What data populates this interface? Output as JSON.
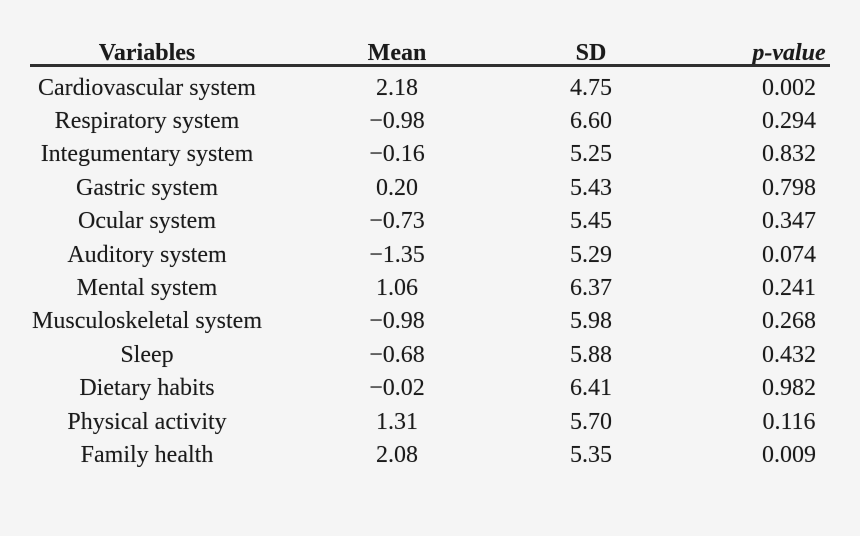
{
  "table": {
    "columns": [
      {
        "label": "Variables"
      },
      {
        "label": "Mean"
      },
      {
        "label": "SD"
      },
      {
        "label": "p-value"
      }
    ],
    "rows": [
      {
        "variable": "Cardiovascular system",
        "mean": "2.18",
        "sd": "4.75",
        "p_value": "0.002"
      },
      {
        "variable": "Respiratory system",
        "mean": "−0.98",
        "sd": "6.60",
        "p_value": "0.294"
      },
      {
        "variable": "Integumentary system",
        "mean": "−0.16",
        "sd": "5.25",
        "p_value": "0.832"
      },
      {
        "variable": "Gastric system",
        "mean": "0.20",
        "sd": "5.43",
        "p_value": "0.798"
      },
      {
        "variable": "Ocular system",
        "mean": "−0.73",
        "sd": "5.45",
        "p_value": "0.347"
      },
      {
        "variable": "Auditory system",
        "mean": "−1.35",
        "sd": "5.29",
        "p_value": "0.074"
      },
      {
        "variable": "Mental system",
        "mean": "1.06",
        "sd": "6.37",
        "p_value": "0.241"
      },
      {
        "variable": "Musculoskeletal system",
        "mean": "−0.98",
        "sd": "5.98",
        "p_value": "0.268"
      },
      {
        "variable": "Sleep",
        "mean": "−0.68",
        "sd": "5.88",
        "p_value": "0.432"
      },
      {
        "variable": "Dietary habits",
        "mean": "−0.02",
        "sd": "6.41",
        "p_value": "0.982"
      },
      {
        "variable": "Physical activity",
        "mean": "1.31",
        "sd": "5.70",
        "p_value": "0.116"
      },
      {
        "variable": "Family health",
        "mean": "2.08",
        "sd": "5.35",
        "p_value": "0.009"
      }
    ]
  },
  "colors": {
    "background": "#f5f5f5",
    "text": "#1b1b1b",
    "rule": "#2f2f2f"
  }
}
